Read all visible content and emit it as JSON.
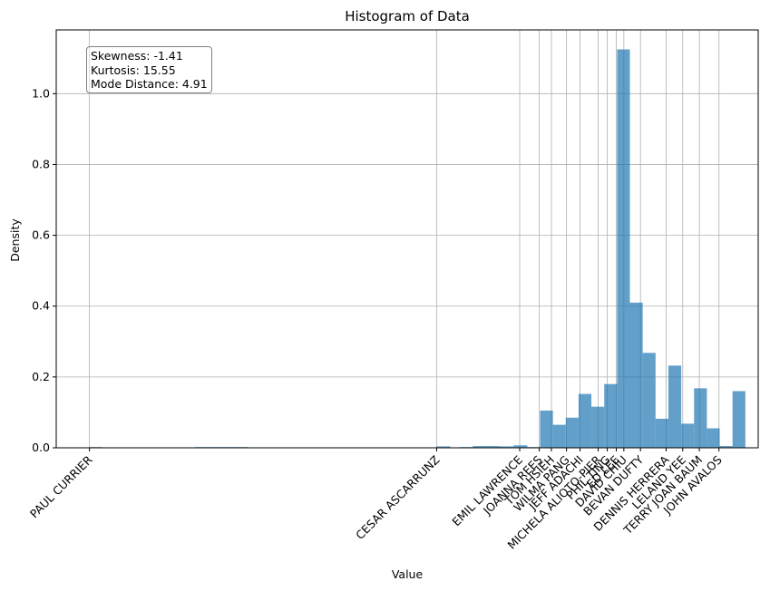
{
  "chart_data": {
    "type": "bar",
    "title": "Histogram of Data",
    "xlabel": "Value",
    "ylabel": "Density",
    "ylim": [
      0,
      1.18
    ],
    "yticks": [
      "0.0",
      "0.2",
      "0.4",
      "0.6",
      "0.8",
      "1.0"
    ],
    "ytick_values": [
      0.0,
      0.2,
      0.4,
      0.6,
      0.8,
      1.0
    ],
    "grid": true,
    "bar_color": "#1f77b4",
    "bar_opacity": 0.7,
    "annotation": {
      "skewness": "Skewness: -1.41",
      "kurtosis": "Kurtosis: 15.55",
      "mode_distance": "Mode Distance: 4.91"
    },
    "xticks": [
      {
        "label": "PAUL CURRIER",
        "value": 1.0
      },
      {
        "label": "CESAR ASCARRUNZ",
        "value": 24.0
      },
      {
        "label": "EMIL LAWRENCE",
        "value": 29.5
      },
      {
        "label": "JOANNA REES",
        "value": 30.8
      },
      {
        "label": "TOM HSIEH",
        "value": 31.6
      },
      {
        "label": "WILMA PANG",
        "value": 32.6
      },
      {
        "label": "JEFF ADACHI",
        "value": 33.5
      },
      {
        "label": "MICHELA ALIOTO-PIER",
        "value": 34.7
      },
      {
        "label": "PHIL TING",
        "value": 35.3
      },
      {
        "label": "ED LEE",
        "value": 35.9
      },
      {
        "label": "DAVID CHIU",
        "value": 36.4
      },
      {
        "label": "BEVAN DUFTY",
        "value": 37.5
      },
      {
        "label": "DENNIS HERRERA",
        "value": 39.2
      },
      {
        "label": "LELAND YEE",
        "value": 40.3
      },
      {
        "label": "TERRY JOAN BAUM",
        "value": 41.4
      },
      {
        "label": "JOHN AVALOS",
        "value": 42.7
      }
    ],
    "bins": [
      {
        "x0": 1.0,
        "x1": 1.85,
        "value": 0.002
      },
      {
        "x0": 8.0,
        "x1": 11.5,
        "value": 0.002
      },
      {
        "x0": 24.0,
        "x1": 24.9,
        "value": 0.004
      },
      {
        "x0": 25.5,
        "x1": 26.4,
        "value": 0.002
      },
      {
        "x0": 26.4,
        "x1": 27.3,
        "value": 0.005
      },
      {
        "x0": 27.3,
        "x1": 28.2,
        "value": 0.005
      },
      {
        "x0": 28.2,
        "x1": 29.1,
        "value": 0.004
      },
      {
        "x0": 29.1,
        "x1": 30.0,
        "value": 0.007
      },
      {
        "x0": 30.0,
        "x1": 30.85,
        "value": 0.002
      },
      {
        "x0": 30.85,
        "x1": 31.7,
        "value": 0.105
      },
      {
        "x0": 31.7,
        "x1": 32.55,
        "value": 0.065
      },
      {
        "x0": 32.55,
        "x1": 33.4,
        "value": 0.085
      },
      {
        "x0": 33.4,
        "x1": 34.25,
        "value": 0.152
      },
      {
        "x0": 34.25,
        "x1": 35.1,
        "value": 0.116
      },
      {
        "x0": 35.1,
        "x1": 35.95,
        "value": 0.18
      },
      {
        "x0": 35.95,
        "x1": 36.8,
        "value": 1.125
      },
      {
        "x0": 36.8,
        "x1": 37.65,
        "value": 0.41
      },
      {
        "x0": 37.65,
        "x1": 38.5,
        "value": 0.268
      },
      {
        "x0": 38.5,
        "x1": 39.35,
        "value": 0.082
      },
      {
        "x0": 39.35,
        "x1": 40.2,
        "value": 0.232
      },
      {
        "x0": 40.2,
        "x1": 41.05,
        "value": 0.068
      },
      {
        "x0": 41.05,
        "x1": 41.9,
        "value": 0.168
      },
      {
        "x0": 41.9,
        "x1": 42.75,
        "value": 0.055
      },
      {
        "x0": 42.75,
        "x1": 43.6,
        "value": 0.005
      },
      {
        "x0": 43.6,
        "x1": 44.45,
        "value": 0.16
      }
    ],
    "xlim": [
      -1.2,
      45.3
    ]
  }
}
